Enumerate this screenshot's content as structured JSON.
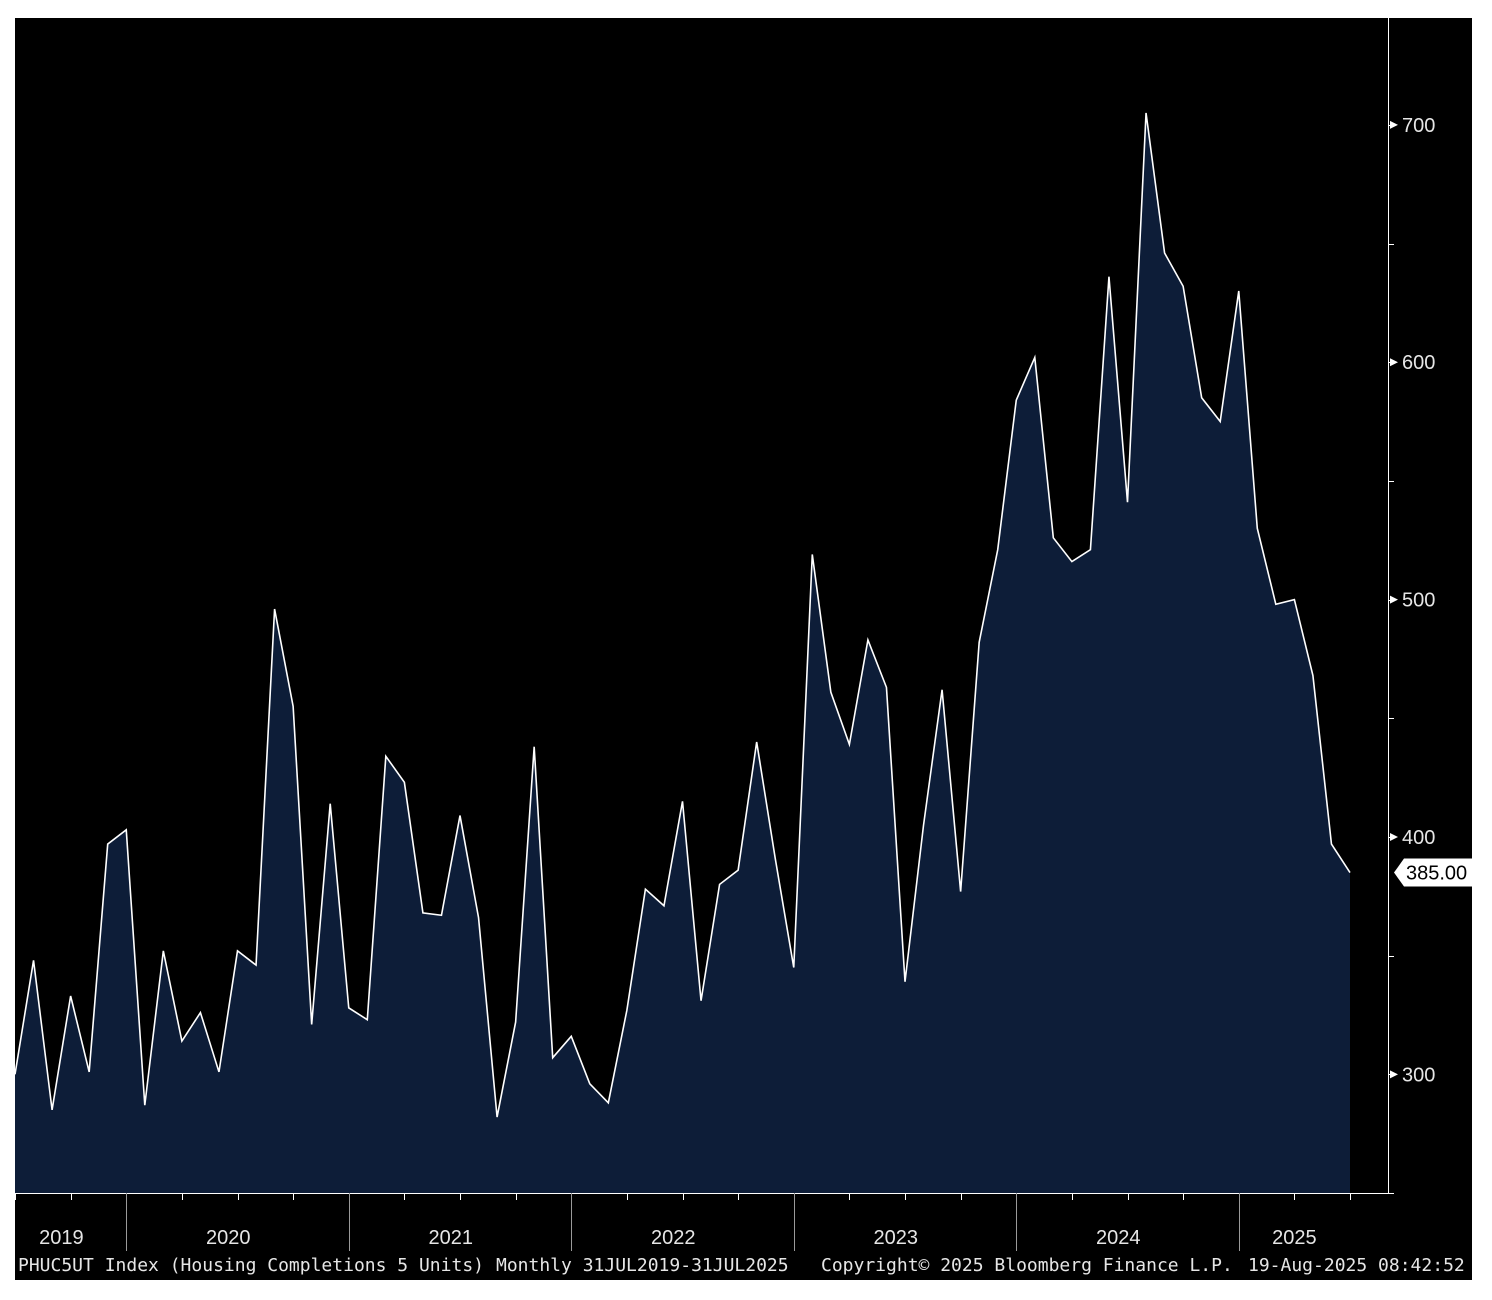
{
  "chart_data": {
    "type": "area",
    "ticker": "PHUC5UT Index",
    "series": [
      {
        "name": "Housing Completions 5 Units",
        "x": [
          "2019-07",
          "2019-08",
          "2019-09",
          "2019-10",
          "2019-11",
          "2019-12",
          "2020-01",
          "2020-02",
          "2020-03",
          "2020-04",
          "2020-05",
          "2020-06",
          "2020-07",
          "2020-08",
          "2020-09",
          "2020-10",
          "2020-11",
          "2020-12",
          "2021-01",
          "2021-02",
          "2021-03",
          "2021-04",
          "2021-05",
          "2021-06",
          "2021-07",
          "2021-08",
          "2021-09",
          "2021-10",
          "2021-11",
          "2021-12",
          "2022-01",
          "2022-02",
          "2022-03",
          "2022-04",
          "2022-05",
          "2022-06",
          "2022-07",
          "2022-08",
          "2022-09",
          "2022-10",
          "2022-11",
          "2022-12",
          "2023-01",
          "2023-02",
          "2023-03",
          "2023-04",
          "2023-05",
          "2023-06",
          "2023-07",
          "2023-08",
          "2023-09",
          "2023-10",
          "2023-11",
          "2023-12",
          "2024-01",
          "2024-02",
          "2024-03",
          "2024-04",
          "2024-05",
          "2024-06",
          "2024-07",
          "2024-08",
          "2024-09",
          "2024-10",
          "2024-11",
          "2024-12",
          "2025-01",
          "2025-02",
          "2025-03",
          "2025-04",
          "2025-05",
          "2025-06",
          "2025-07"
        ],
        "values": [
          300,
          348,
          285,
          333,
          301,
          397,
          403,
          287,
          352,
          314,
          326,
          301,
          352,
          346,
          496,
          455,
          321,
          414,
          328,
          323,
          434,
          423,
          368,
          367,
          409,
          366,
          282,
          322,
          438,
          307,
          316,
          296,
          288,
          327,
          378,
          371,
          415,
          331,
          380,
          386,
          440,
          391,
          345,
          519,
          461,
          439,
          483,
          463,
          339,
          405,
          462,
          377,
          482,
          521,
          584,
          602,
          526,
          516,
          521,
          636,
          541,
          705,
          646,
          632,
          585,
          575,
          630,
          530,
          498,
          500,
          468,
          397,
          385
        ]
      }
    ],
    "y_ticks": [
      "300",
      "400",
      "500",
      "600",
      "700"
    ],
    "ylim": [
      250,
      745
    ],
    "x_year_labels": [
      "2019",
      "2020",
      "2021",
      "2022",
      "2023",
      "2024",
      "2025"
    ],
    "last_value_label": "385.00",
    "line_color": "#ffffff",
    "fill_color": "#0d1d38",
    "background_color": "#000000",
    "grid": false
  },
  "footer": {
    "series_desc": "PHUC5UT Index (Housing Completions 5 Units)",
    "period": "Monthly 31JUL2019-31JUL2025",
    "copyright": "Copyright© 2025 Bloomberg Finance L.P.",
    "timestamp": "19-Aug-2025 08:42:52"
  }
}
